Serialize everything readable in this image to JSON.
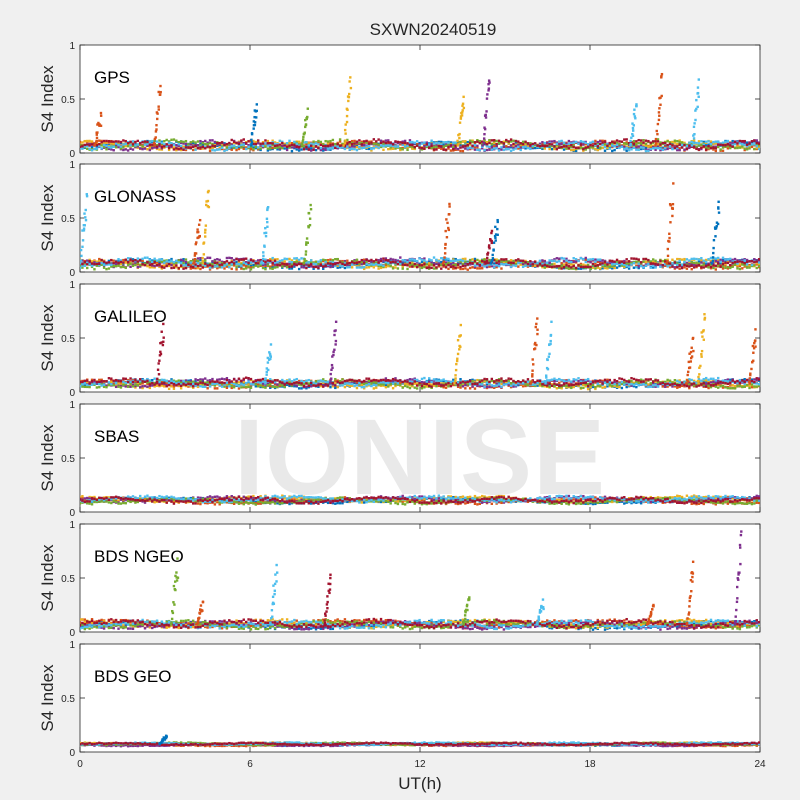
{
  "chart_data": {
    "type": "scatter",
    "title": "SXWN20240519",
    "xlabel": "UT(h)",
    "xlim": [
      0,
      24
    ],
    "xticks": [
      "0",
      "6",
      "12",
      "18",
      "24"
    ],
    "watermark": "IONISE",
    "series_colors": [
      "#0072BD",
      "#D95319",
      "#EDB120",
      "#7E2F8E",
      "#77AC30",
      "#4DBEEE",
      "#A2142F"
    ],
    "panels": [
      {
        "label": "GPS",
        "ylabel": "S4 Index",
        "ylim": [
          0,
          1
        ],
        "yticks": [
          "0",
          "0.5",
          "1"
        ],
        "baseline": 0.07,
        "noise": 0.045,
        "seed": 11,
        "spikes": [
          {
            "x": 0.7,
            "peak": 0.37,
            "color": 1
          },
          {
            "x": 2.8,
            "peak": 0.62,
            "color": 1
          },
          {
            "x": 6.2,
            "peak": 0.45,
            "color": 0
          },
          {
            "x": 8.0,
            "peak": 0.41,
            "color": 4
          },
          {
            "x": 9.5,
            "peak": 0.7,
            "color": 2
          },
          {
            "x": 13.5,
            "peak": 0.52,
            "color": 2
          },
          {
            "x": 14.4,
            "peak": 0.67,
            "color": 3
          },
          {
            "x": 19.6,
            "peak": 0.45,
            "color": 5
          },
          {
            "x": 20.5,
            "peak": 0.73,
            "color": 1
          },
          {
            "x": 21.8,
            "peak": 0.68,
            "color": 5
          }
        ]
      },
      {
        "label": "GLONASS",
        "ylabel": "S4 Index",
        "ylim": [
          0,
          1
        ],
        "yticks": [
          "0",
          "0.5",
          "1"
        ],
        "baseline": 0.08,
        "noise": 0.045,
        "seed": 23,
        "spikes": [
          {
            "x": 0.2,
            "peak": 0.72,
            "color": 5
          },
          {
            "x": 4.5,
            "peak": 0.75,
            "color": 2
          },
          {
            "x": 4.2,
            "peak": 0.48,
            "color": 1
          },
          {
            "x": 6.6,
            "peak": 0.6,
            "color": 5
          },
          {
            "x": 8.1,
            "peak": 0.62,
            "color": 4
          },
          {
            "x": 13.0,
            "peak": 0.63,
            "color": 1
          },
          {
            "x": 14.7,
            "peak": 0.48,
            "color": 0
          },
          {
            "x": 14.5,
            "peak": 0.38,
            "color": 6
          },
          {
            "x": 20.9,
            "peak": 0.82,
            "color": 1
          },
          {
            "x": 22.5,
            "peak": 0.65,
            "color": 0
          }
        ]
      },
      {
        "label": "GALILEO",
        "ylabel": "S4 Index",
        "ylim": [
          0,
          1
        ],
        "yticks": [
          "0",
          "0.5",
          "1"
        ],
        "baseline": 0.08,
        "noise": 0.04,
        "seed": 37,
        "spikes": [
          {
            "x": 2.9,
            "peak": 0.63,
            "color": 6
          },
          {
            "x": 6.7,
            "peak": 0.44,
            "color": 5
          },
          {
            "x": 9.0,
            "peak": 0.65,
            "color": 3
          },
          {
            "x": 13.4,
            "peak": 0.62,
            "color": 2
          },
          {
            "x": 16.1,
            "peak": 0.68,
            "color": 1
          },
          {
            "x": 16.6,
            "peak": 0.65,
            "color": 5
          },
          {
            "x": 22.0,
            "peak": 0.72,
            "color": 2
          },
          {
            "x": 21.6,
            "peak": 0.5,
            "color": 1
          },
          {
            "x": 23.8,
            "peak": 0.58,
            "color": 1
          }
        ]
      },
      {
        "label": "SBAS",
        "ylabel": "S4 Index",
        "ylim": [
          0,
          1
        ],
        "yticks": [
          "0",
          "0.5",
          "1"
        ],
        "baseline": 0.11,
        "noise": 0.03,
        "seed": 41,
        "spikes": []
      },
      {
        "label": "BDS NGEO",
        "ylabel": "S4 Index",
        "ylim": [
          0,
          1
        ],
        "yticks": [
          "0",
          "0.5",
          "1"
        ],
        "baseline": 0.07,
        "noise": 0.04,
        "seed": 53,
        "spikes": [
          {
            "x": 3.4,
            "peak": 0.68,
            "color": 4
          },
          {
            "x": 4.3,
            "peak": 0.28,
            "color": 1
          },
          {
            "x": 6.9,
            "peak": 0.62,
            "color": 5
          },
          {
            "x": 8.8,
            "peak": 0.53,
            "color": 6
          },
          {
            "x": 13.7,
            "peak": 0.32,
            "color": 4
          },
          {
            "x": 16.3,
            "peak": 0.3,
            "color": 5
          },
          {
            "x": 20.2,
            "peak": 0.25,
            "color": 1
          },
          {
            "x": 21.6,
            "peak": 0.65,
            "color": 1
          },
          {
            "x": 23.3,
            "peak": 0.93,
            "color": 3
          }
        ]
      },
      {
        "label": "BDS GEO",
        "ylabel": "S4 Index",
        "ylim": [
          0,
          1
        ],
        "yticks": [
          "0",
          "0.5",
          "1"
        ],
        "baseline": 0.075,
        "noise": 0.012,
        "seed": 67,
        "spikes": [
          {
            "x": 3.0,
            "peak": 0.15,
            "color": 0
          }
        ]
      }
    ]
  }
}
